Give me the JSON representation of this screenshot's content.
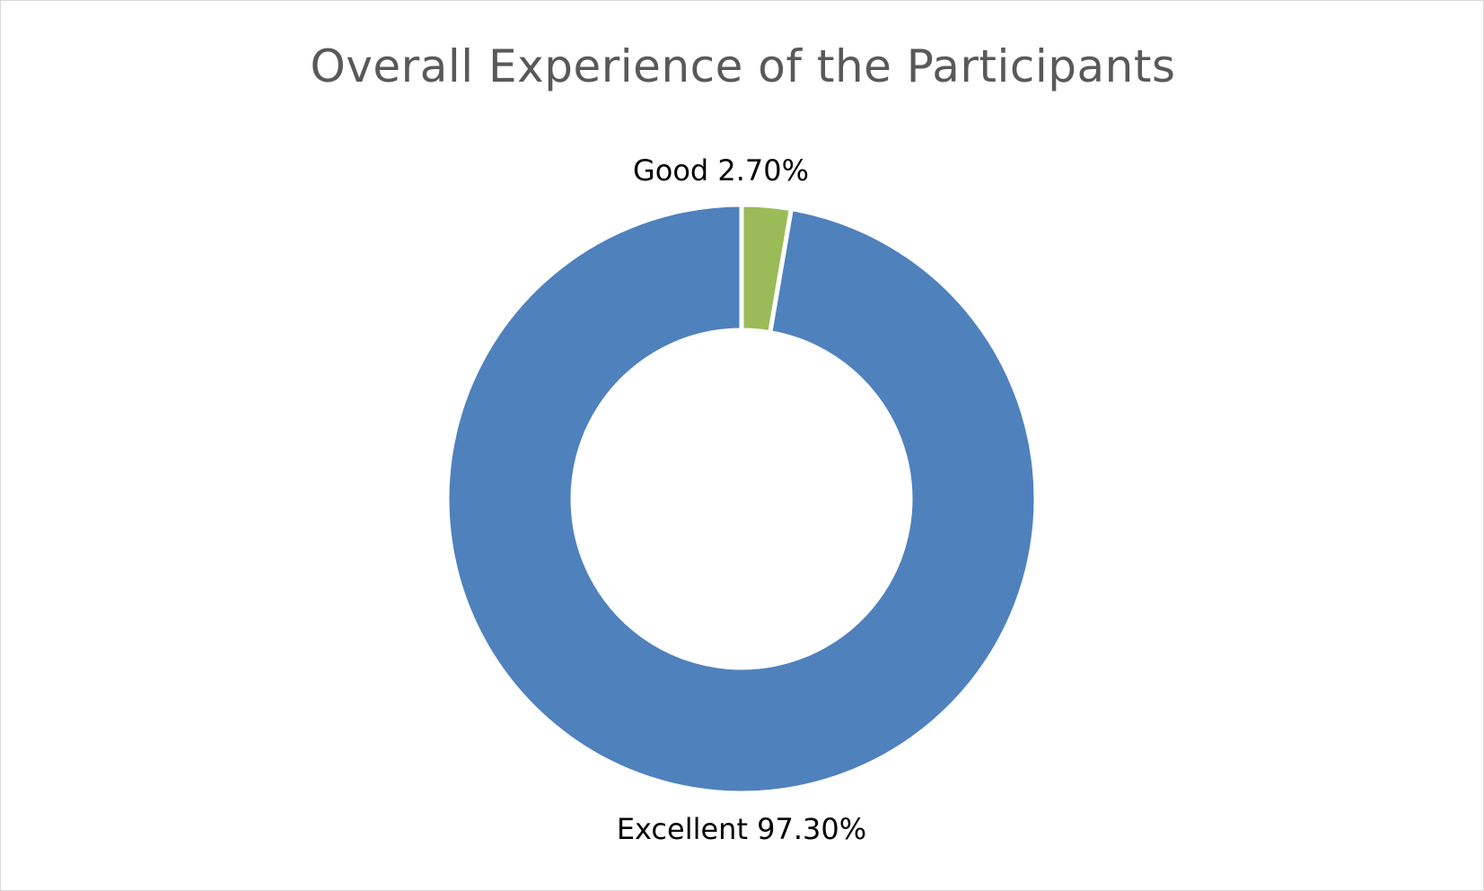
{
  "chart_data": {
    "type": "pie",
    "variant": "doughnut",
    "title": "Overall Experience of the Participants",
    "categories": [
      "Excellent",
      "Good"
    ],
    "values": [
      97.3,
      2.7
    ],
    "value_unit": "%",
    "data_labels": [
      "Excellent 97.30%",
      "Good 2.70%"
    ],
    "colors": [
      "#4f81bd",
      "#9bbb59"
    ],
    "slice_border_color": "#ffffff",
    "legend": "none",
    "start": "top",
    "direction": "counter-clockwise"
  }
}
